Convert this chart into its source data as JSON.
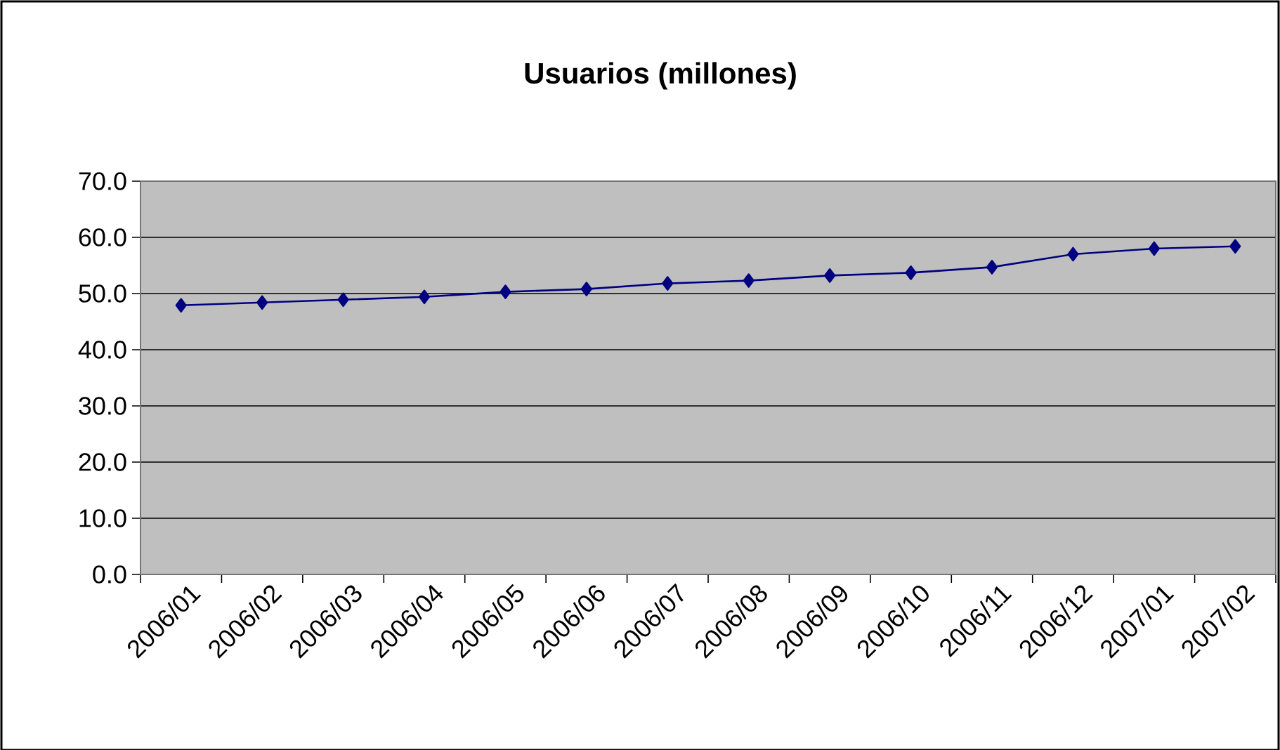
{
  "chart_data": {
    "type": "line",
    "title": "Usuarios (millones)",
    "categories": [
      "2006/01",
      "2006/02",
      "2006/03",
      "2006/04",
      "2006/05",
      "2006/06",
      "2006/07",
      "2006/08",
      "2006/09",
      "2006/10",
      "2006/11",
      "2006/12",
      "2007/01",
      "2007/02"
    ],
    "series": [
      {
        "color": "#000080",
        "values": [
          47.9,
          48.4,
          48.9,
          49.4,
          50.3,
          50.8,
          51.8,
          52.3,
          53.2,
          53.7,
          54.7,
          57.0,
          58.0,
          58.4
        ]
      }
    ],
    "ylim": [
      0,
      70
    ],
    "yticks": [
      {
        "value": 0,
        "label": "0.0"
      },
      {
        "value": 10,
        "label": "10.0"
      },
      {
        "value": 20,
        "label": "20.0"
      },
      {
        "value": 30,
        "label": "30.0"
      },
      {
        "value": 40,
        "label": "40.0"
      },
      {
        "value": 50,
        "label": "50.0"
      },
      {
        "value": 60,
        "label": "60.0"
      },
      {
        "value": 70,
        "label": "70.0"
      }
    ],
    "grid": "y",
    "marker": "diamond",
    "line_style": "solid"
  }
}
